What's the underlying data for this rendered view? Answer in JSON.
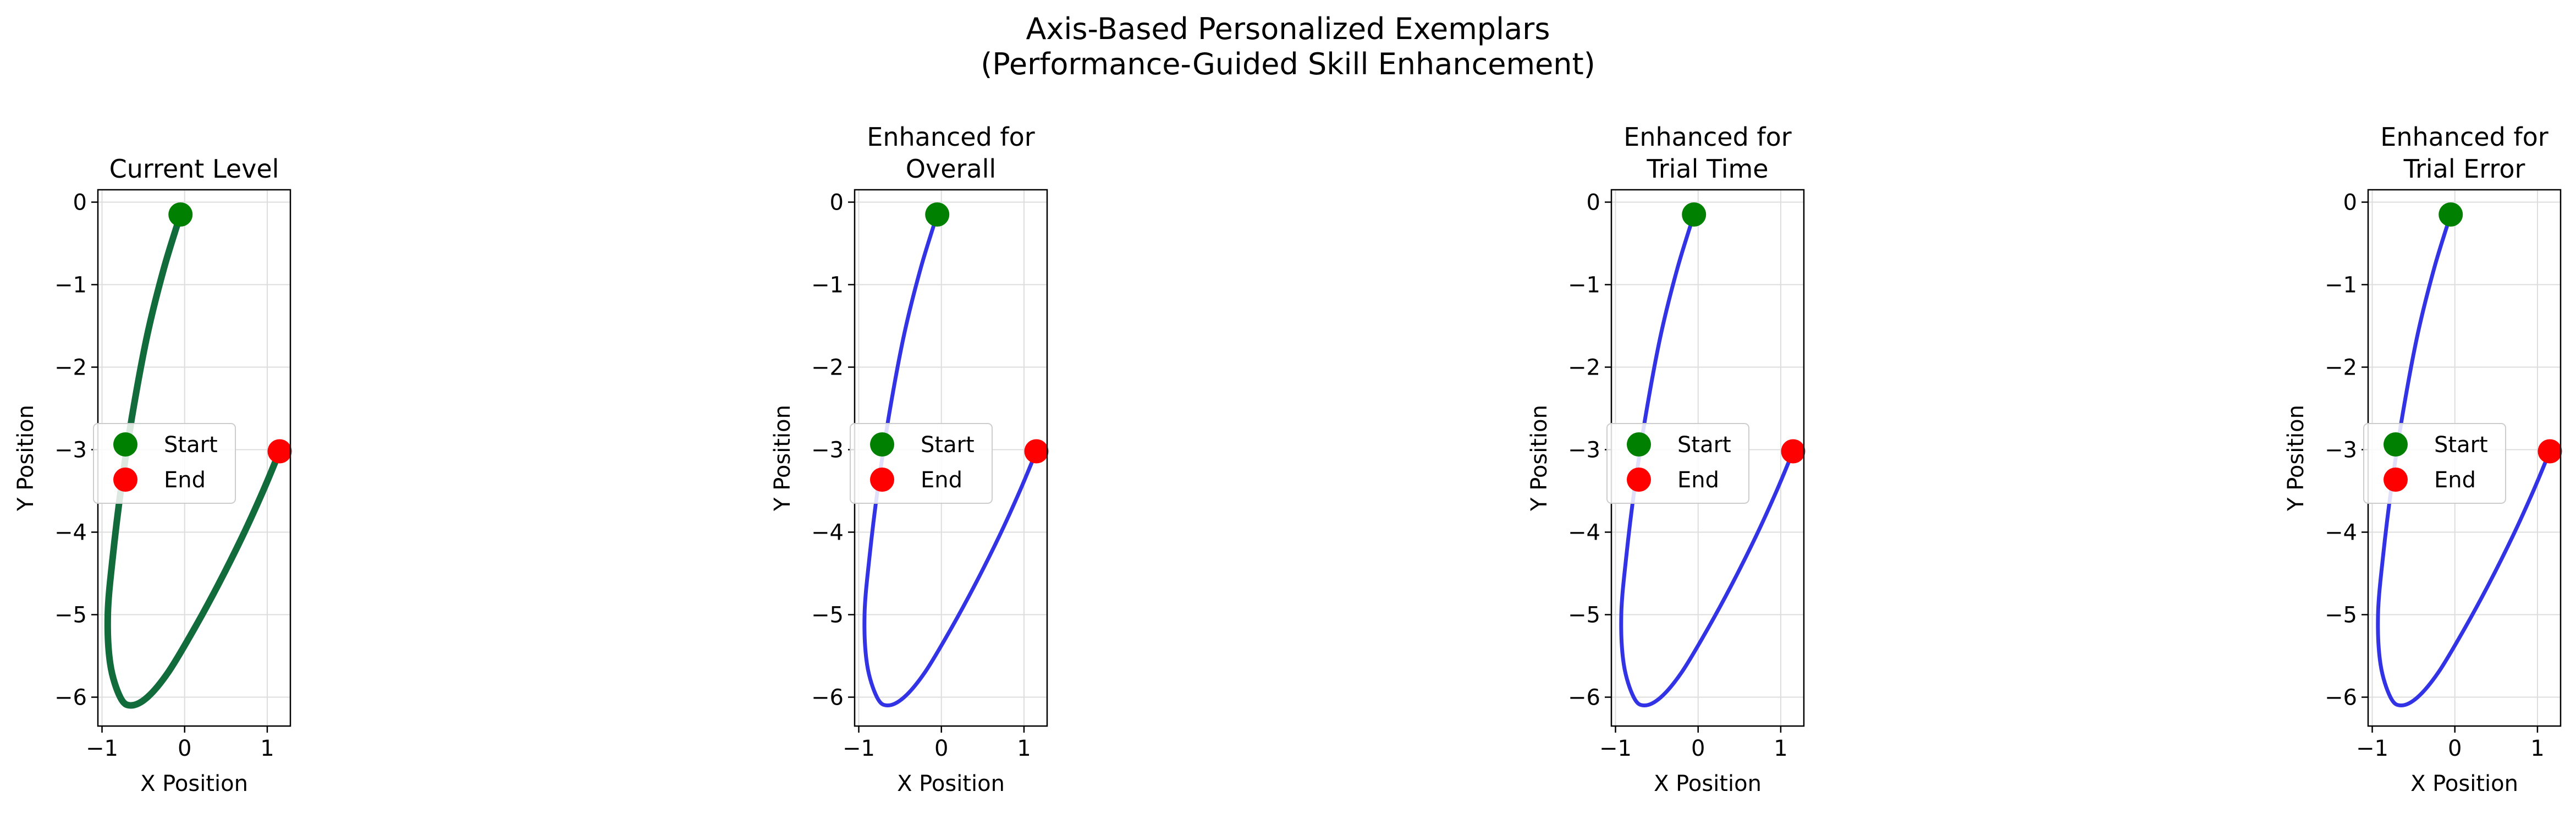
{
  "figure": {
    "title_line1": "Axis-Based Personalized Exemplars",
    "title_line2": "(Performance-Guided Skill Enhancement)"
  },
  "chart_data": [
    {
      "type": "line",
      "title": [
        "Current Level"
      ],
      "xlabel": "X Position",
      "ylabel": "Y Position",
      "xlim": [
        -1.05,
        1.28
      ],
      "ylim": [
        -6.35,
        0.15
      ],
      "xticks": [
        -1,
        0,
        1
      ],
      "yticks": [
        0,
        -1,
        -2,
        -3,
        -4,
        -5,
        -6
      ],
      "grid": true,
      "line_color": "#116b3a",
      "line_width": 12,
      "series": [
        {
          "points": [
            [
              -0.05,
              -0.15
            ],
            [
              -0.25,
              -0.8
            ],
            [
              -0.45,
              -1.6
            ],
            [
              -0.62,
              -2.5
            ],
            [
              -0.76,
              -3.4
            ],
            [
              -0.87,
              -4.3
            ],
            [
              -0.93,
              -5.0
            ],
            [
              -0.9,
              -5.6
            ],
            [
              -0.78,
              -6.0
            ],
            [
              -0.65,
              -6.1
            ],
            [
              -0.45,
              -6.0
            ],
            [
              -0.2,
              -5.7
            ],
            [
              0.1,
              -5.2
            ],
            [
              0.4,
              -4.65
            ],
            [
              0.7,
              -4.05
            ],
            [
              0.95,
              -3.5
            ],
            [
              1.15,
              -3.02
            ]
          ]
        }
      ],
      "start": {
        "x": -0.05,
        "y": -0.15
      },
      "end": {
        "x": 1.15,
        "y": -3.02
      },
      "legend": {
        "position": "center-left",
        "entries": [
          {
            "label": "Start",
            "color": "#008000"
          },
          {
            "label": "End",
            "color": "#ff0000"
          }
        ]
      }
    },
    {
      "type": "line",
      "title": [
        "Enhanced for",
        "Overall"
      ],
      "xlabel": "X Position",
      "ylabel": "Y Position",
      "xlim": [
        -1.05,
        1.28
      ],
      "ylim": [
        -6.35,
        0.15
      ],
      "xticks": [
        -1,
        0,
        1
      ],
      "yticks": [
        0,
        -1,
        -2,
        -3,
        -4,
        -5,
        -6
      ],
      "grid": true,
      "line_color": "#3333e6",
      "line_width": 7,
      "series": [
        {
          "points": [
            [
              -0.05,
              -0.15
            ],
            [
              -0.25,
              -0.8
            ],
            [
              -0.45,
              -1.6
            ],
            [
              -0.62,
              -2.5
            ],
            [
              -0.76,
              -3.4
            ],
            [
              -0.87,
              -4.3
            ],
            [
              -0.93,
              -5.0
            ],
            [
              -0.9,
              -5.6
            ],
            [
              -0.78,
              -6.0
            ],
            [
              -0.65,
              -6.1
            ],
            [
              -0.45,
              -6.0
            ],
            [
              -0.2,
              -5.7
            ],
            [
              0.1,
              -5.2
            ],
            [
              0.4,
              -4.65
            ],
            [
              0.7,
              -4.05
            ],
            [
              0.95,
              -3.5
            ],
            [
              1.15,
              -3.02
            ]
          ]
        }
      ],
      "start": {
        "x": -0.05,
        "y": -0.15
      },
      "end": {
        "x": 1.15,
        "y": -3.02
      },
      "legend": {
        "position": "center-left",
        "entries": [
          {
            "label": "Start",
            "color": "#008000"
          },
          {
            "label": "End",
            "color": "#ff0000"
          }
        ]
      }
    },
    {
      "type": "line",
      "title": [
        "Enhanced for",
        "Trial Time"
      ],
      "xlabel": "X Position",
      "ylabel": "Y Position",
      "xlim": [
        -1.05,
        1.28
      ],
      "ylim": [
        -6.35,
        0.15
      ],
      "xticks": [
        -1,
        0,
        1
      ],
      "yticks": [
        0,
        -1,
        -2,
        -3,
        -4,
        -5,
        -6
      ],
      "grid": true,
      "line_color": "#3333e6",
      "line_width": 7,
      "series": [
        {
          "points": [
            [
              -0.05,
              -0.15
            ],
            [
              -0.25,
              -0.8
            ],
            [
              -0.45,
              -1.6
            ],
            [
              -0.62,
              -2.5
            ],
            [
              -0.76,
              -3.4
            ],
            [
              -0.87,
              -4.3
            ],
            [
              -0.93,
              -5.0
            ],
            [
              -0.9,
              -5.6
            ],
            [
              -0.78,
              -6.0
            ],
            [
              -0.65,
              -6.1
            ],
            [
              -0.45,
              -6.0
            ],
            [
              -0.2,
              -5.7
            ],
            [
              0.1,
              -5.2
            ],
            [
              0.4,
              -4.65
            ],
            [
              0.7,
              -4.05
            ],
            [
              0.95,
              -3.5
            ],
            [
              1.15,
              -3.02
            ]
          ]
        }
      ],
      "start": {
        "x": -0.05,
        "y": -0.15
      },
      "end": {
        "x": 1.15,
        "y": -3.02
      },
      "legend": {
        "position": "center-left",
        "entries": [
          {
            "label": "Start",
            "color": "#008000"
          },
          {
            "label": "End",
            "color": "#ff0000"
          }
        ]
      }
    },
    {
      "type": "line",
      "title": [
        "Enhanced for",
        "Trial Error"
      ],
      "xlabel": "X Position",
      "ylabel": "Y Position",
      "xlim": [
        -1.05,
        1.28
      ],
      "ylim": [
        -6.35,
        0.15
      ],
      "xticks": [
        -1,
        0,
        1
      ],
      "yticks": [
        0,
        -1,
        -2,
        -3,
        -4,
        -5,
        -6
      ],
      "grid": true,
      "line_color": "#3333e6",
      "line_width": 7,
      "series": [
        {
          "points": [
            [
              -0.05,
              -0.15
            ],
            [
              -0.25,
              -0.8
            ],
            [
              -0.45,
              -1.6
            ],
            [
              -0.62,
              -2.5
            ],
            [
              -0.76,
              -3.4
            ],
            [
              -0.87,
              -4.3
            ],
            [
              -0.93,
              -5.0
            ],
            [
              -0.9,
              -5.6
            ],
            [
              -0.78,
              -6.0
            ],
            [
              -0.65,
              -6.1
            ],
            [
              -0.45,
              -6.0
            ],
            [
              -0.2,
              -5.7
            ],
            [
              0.1,
              -5.2
            ],
            [
              0.4,
              -4.65
            ],
            [
              0.7,
              -4.05
            ],
            [
              0.95,
              -3.5
            ],
            [
              1.15,
              -3.02
            ]
          ]
        }
      ],
      "start": {
        "x": -0.05,
        "y": -0.15
      },
      "end": {
        "x": 1.15,
        "y": -3.02
      },
      "legend": {
        "position": "center-left",
        "entries": [
          {
            "label": "Start",
            "color": "#008000"
          },
          {
            "label": "End",
            "color": "#ff0000"
          }
        ]
      }
    }
  ]
}
